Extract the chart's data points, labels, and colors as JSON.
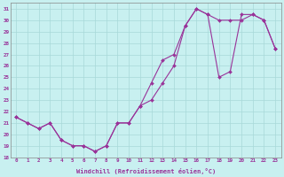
{
  "xlabel": "Windchill (Refroidissement éolien,°C)",
  "ylabel": "",
  "bg_color": "#c8f0f0",
  "line_color": "#993399",
  "xlim": [
    -0.5,
    23.5
  ],
  "ylim": [
    18,
    31.5
  ],
  "xticks": [
    0,
    1,
    2,
    3,
    4,
    5,
    6,
    7,
    8,
    9,
    10,
    11,
    12,
    13,
    14,
    15,
    16,
    17,
    18,
    19,
    20,
    21,
    22,
    23
  ],
  "yticks": [
    18,
    19,
    20,
    21,
    22,
    23,
    24,
    25,
    26,
    27,
    28,
    29,
    30,
    31
  ],
  "series1_x": [
    0,
    1,
    2,
    3,
    4,
    5,
    6,
    7,
    8,
    9,
    10,
    11,
    12,
    13,
    14,
    15,
    16,
    17,
    18,
    19,
    20,
    21,
    22,
    23
  ],
  "series1_y": [
    21.5,
    21.0,
    20.5,
    21.0,
    19.5,
    19.0,
    19.0,
    18.5,
    19.0,
    21.0,
    21.0,
    22.5,
    24.5,
    26.5,
    27.0,
    29.5,
    31.0,
    30.5,
    30.0,
    30.0,
    30.0,
    30.5,
    30.0,
    27.5
  ],
  "series2_x": [
    0,
    1,
    2,
    3,
    4,
    5,
    6,
    7,
    8,
    9,
    10,
    11,
    12,
    13,
    14,
    15,
    16,
    17,
    18,
    19,
    20,
    21,
    22,
    23
  ],
  "series2_y": [
    21.5,
    21.0,
    20.5,
    21.0,
    19.5,
    19.0,
    19.0,
    18.5,
    19.0,
    21.0,
    21.0,
    22.5,
    23.0,
    24.5,
    26.0,
    29.5,
    31.0,
    30.5,
    25.0,
    25.5,
    30.5,
    30.5,
    30.0,
    27.5
  ]
}
